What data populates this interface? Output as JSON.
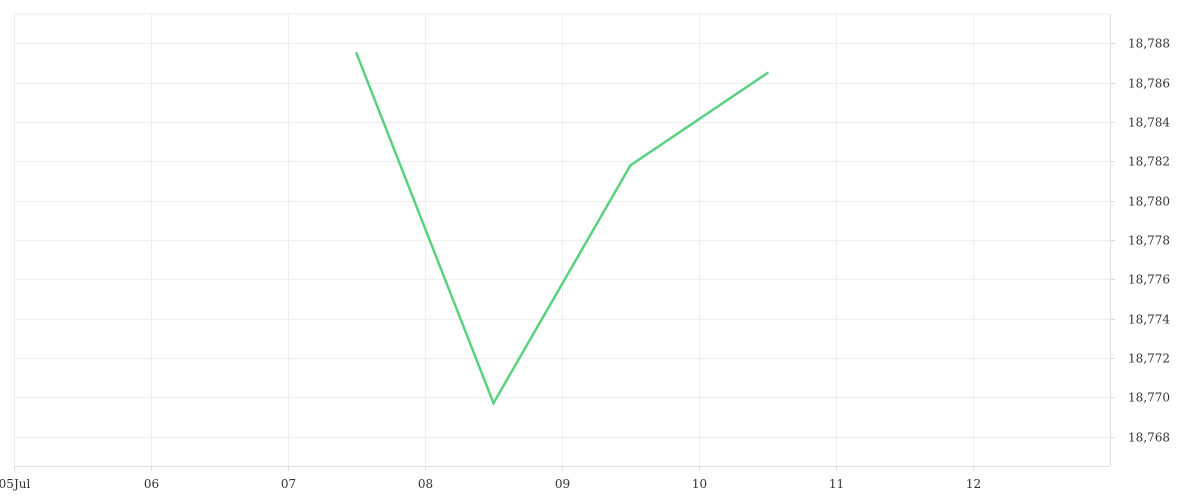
{
  "chart_data": {
    "type": "line",
    "title": "",
    "xlabel": "",
    "ylabel": "",
    "x_ticks": [
      {
        "date": "2024-07-05",
        "label": "05Jul"
      },
      {
        "date": "2024-07-06",
        "label": "06"
      },
      {
        "date": "2024-07-07",
        "label": "07"
      },
      {
        "date": "2024-07-08",
        "label": "08"
      },
      {
        "date": "2024-07-09",
        "label": "09"
      },
      {
        "date": "2024-07-10",
        "label": "10"
      },
      {
        "date": "2024-07-11",
        "label": "11"
      },
      {
        "date": "2024-07-12",
        "label": "12"
      }
    ],
    "xlim": [
      "2024-07-05T00:00",
      "2024-07-13T00:00"
    ],
    "y_ticks": [
      18.768,
      18.77,
      18.772,
      18.774,
      18.776,
      18.778,
      18.78,
      18.782,
      18.784,
      18.786,
      18.788
    ],
    "ylim": [
      18.7665,
      18.7895
    ],
    "y_axis_position": "right",
    "grid": true,
    "series": [
      {
        "color": "#5ad17f",
        "points": [
          {
            "x": "2024-07-07T12:00",
            "y": 18.7875
          },
          {
            "x": "2024-07-08T12:00",
            "y": 18.7697
          },
          {
            "x": "2024-07-09T12:00",
            "y": 18.7818
          },
          {
            "x": "2024-07-10T12:00",
            "y": 18.7865
          }
        ]
      }
    ],
    "colors": {
      "grid": "#eeeeee",
      "axis": "#dddddd",
      "text": "#333333"
    }
  }
}
